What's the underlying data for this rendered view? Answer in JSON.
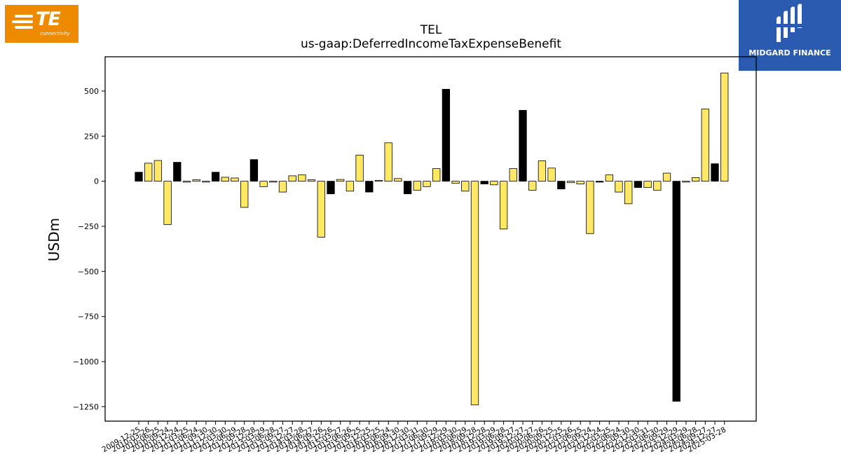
{
  "logos": {
    "left": {
      "mark": "TE",
      "tagline": "connectivity",
      "color": "#ee8a00"
    },
    "right": {
      "name": "MIDGARD FINANCE",
      "color": "#2b5bb1"
    }
  },
  "chart_data": {
    "type": "bar",
    "title": "TEL",
    "subtitle": "us-gaap:DeferredIncomeTaxExpenseBenefit",
    "xlabel": "",
    "ylabel": "USDm",
    "ylim": [
      -1330,
      690
    ],
    "yticks": [
      500,
      250,
      0,
      -250,
      -500,
      -750,
      -1000,
      -1250
    ],
    "ytick_labels": [
      "500",
      "250",
      "0",
      "−250",
      "−500",
      "−750",
      "−1000",
      "−1250"
    ],
    "grid": false,
    "colors": {
      "annual": "#000000",
      "quarter": "#ffe866",
      "edge": "#000000"
    },
    "x_tick_labels": [
      "2009-12-25",
      "2010-03-26",
      "2010-06-25",
      "2010-09-24",
      "2010-12-24",
      "2011-03-25",
      "2011-06-24",
      "2011-09-30",
      "2011-12-30",
      "2012-03-30",
      "2012-06-29",
      "2012-09-28",
      "2012-12-28",
      "2013-03-29",
      "2013-06-28",
      "2013-09-27",
      "2013-12-27",
      "2014-03-28",
      "2014-06-27",
      "2014-09-26",
      "2014-12-26",
      "2015-03-27",
      "2015-06-26",
      "2015-09-25",
      "2015-12-25",
      "2016-03-25",
      "2016-06-24",
      "2016-09-30",
      "2016-12-30",
      "2017-03-31",
      "2017-06-30",
      "2017-09-29",
      "2017-12-29",
      "2018-03-30",
      "2018-06-29",
      "2018-09-28",
      "2018-12-28",
      "2019-03-29",
      "2019-06-28",
      "2019-09-27",
      "2019-12-27",
      "2020-03-27",
      "2020-06-26",
      "2020-09-25",
      "2020-12-25",
      "2021-03-26",
      "2021-06-25",
      "2021-09-24",
      "2021-12-24",
      "2022-03-25",
      "2022-06-24",
      "2022-09-30",
      "2022-12-30",
      "2023-03-31",
      "2023-06-30",
      "2023-09-29",
      "2023-12-29",
      "2024-03-29",
      "2024-06-28",
      "2024-09-27",
      "2024-12-27",
      "2025-03-28"
    ],
    "values": [
      50,
      100,
      115,
      -240,
      105,
      -5,
      8,
      -5,
      50,
      22,
      18,
      -145,
      120,
      -30,
      -5,
      -60,
      30,
      35,
      8,
      -310,
      -70,
      10,
      -55,
      145,
      -60,
      5,
      213,
      15,
      -70,
      -50,
      -30,
      70,
      510,
      -12,
      -55,
      -1240,
      -15,
      -20,
      -265,
      70,
      393,
      -50,
      113,
      73,
      -43,
      -8,
      -15,
      -290,
      -5,
      35,
      -60,
      -125,
      -35,
      -35,
      -50,
      45,
      -1220,
      -5,
      20,
      400,
      97,
      600
    ],
    "is_annual": [
      true,
      false,
      false,
      false,
      true,
      false,
      false,
      false,
      true,
      false,
      false,
      false,
      true,
      false,
      false,
      false,
      false,
      false,
      false,
      false,
      true,
      false,
      false,
      false,
      true,
      false,
      false,
      false,
      true,
      false,
      false,
      false,
      true,
      false,
      false,
      false,
      true,
      false,
      false,
      false,
      true,
      false,
      false,
      false,
      true,
      false,
      false,
      false,
      true,
      false,
      false,
      false,
      true,
      false,
      false,
      false,
      true,
      false,
      false,
      false,
      true,
      false
    ]
  }
}
